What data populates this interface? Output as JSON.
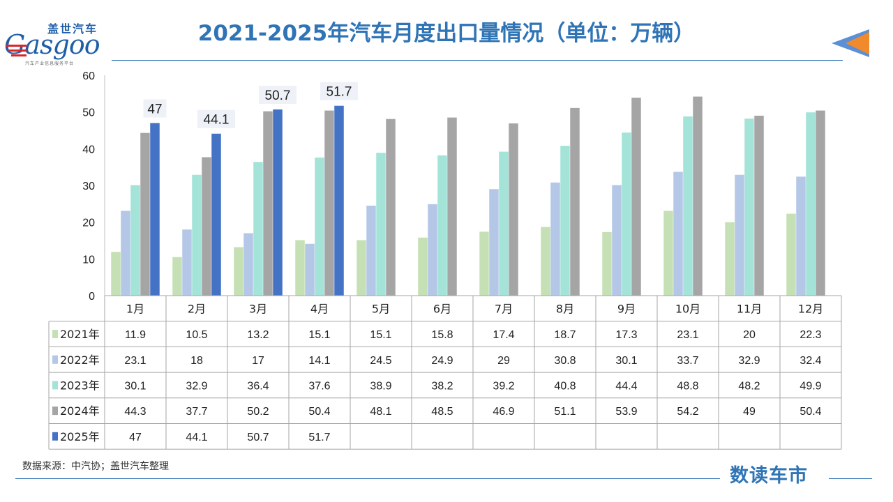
{
  "title": "2021-2025年汽车月度出口量情况（单位：万辆）",
  "logo": {
    "cn": "盖世汽车",
    "en": "Gasgoo",
    "sub": "汽车产业信息服务平台"
  },
  "source": "数据来源：中汽协；盖世汽车整理",
  "brand": "数读车市",
  "colors": {
    "title": "#2f74b5",
    "accent": "#f08a2c"
  },
  "chart_data": {
    "type": "bar",
    "title": "2021-2025年汽车月度出口量情况（单位：万辆）",
    "ylim": [
      0,
      60
    ],
    "yticks": [
      0,
      10,
      20,
      30,
      40,
      50,
      60
    ],
    "grid": false,
    "legend": "table-left",
    "categories": [
      "1月",
      "2月",
      "3月",
      "4月",
      "5月",
      "6月",
      "7月",
      "8月",
      "9月",
      "10月",
      "11月",
      "12月"
    ],
    "series": [
      {
        "name": "2021年",
        "color": "#c5e0b4",
        "values": [
          11.9,
          10.5,
          13.2,
          15.1,
          15.1,
          15.8,
          17.4,
          18.7,
          17.3,
          23.1,
          20,
          22.3
        ]
      },
      {
        "name": "2022年",
        "color": "#b4c7e7",
        "values": [
          23.1,
          18,
          17,
          14.1,
          24.5,
          24.9,
          29,
          30.8,
          30.1,
          33.7,
          32.9,
          32.4
        ]
      },
      {
        "name": "2023年",
        "color": "#a3e3d8",
        "values": [
          30.1,
          32.9,
          36.4,
          37.6,
          38.9,
          38.2,
          39.2,
          40.8,
          44.4,
          48.8,
          48.2,
          49.9
        ]
      },
      {
        "name": "2024年",
        "color": "#a5a5a5",
        "values": [
          44.3,
          37.7,
          50.2,
          50.4,
          48.1,
          48.5,
          46.9,
          51.1,
          53.9,
          54.2,
          49,
          50.4
        ]
      },
      {
        "name": "2025年",
        "color": "#4472c4",
        "values": [
          47,
          44.1,
          50.7,
          51.7,
          null,
          null,
          null,
          null,
          null,
          null,
          null,
          null
        ]
      }
    ],
    "data_labels": {
      "series": "2025年"
    }
  }
}
